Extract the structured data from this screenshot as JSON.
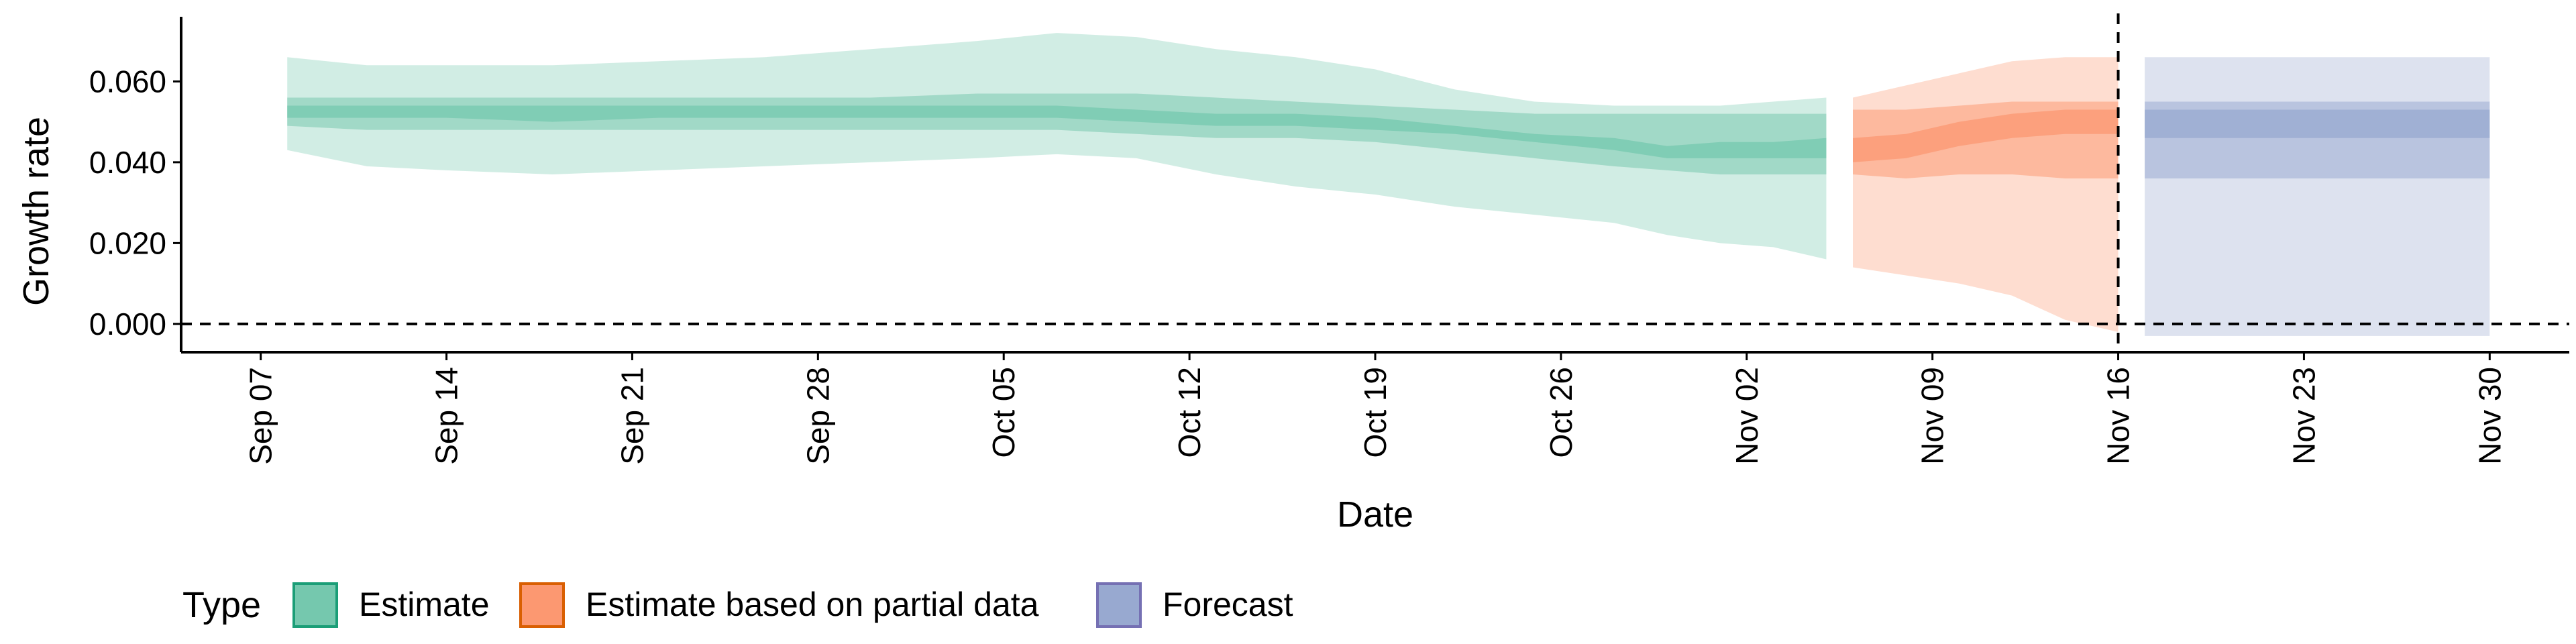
{
  "chart_data": {
    "type": "area",
    "xlabel": "Date",
    "ylabel": "Growth rate",
    "x_tick_labels": [
      "Sep 07",
      "Sep 14",
      "Sep 21",
      "Sep 28",
      "Oct 05",
      "Oct 12",
      "Oct 19",
      "Oct 26",
      "Nov 02",
      "Nov 09",
      "Nov 16",
      "Nov 23",
      "Nov 30"
    ],
    "x_tick_dates": [
      "2020-09-07",
      "2020-09-14",
      "2020-09-21",
      "2020-09-28",
      "2020-10-05",
      "2020-10-12",
      "2020-10-19",
      "2020-10-26",
      "2020-11-02",
      "2020-11-09",
      "2020-11-16",
      "2020-11-23",
      "2020-11-30"
    ],
    "y_tick_labels": [
      "0.000",
      "0.020",
      "0.040",
      "0.060"
    ],
    "y_ticks": [
      0,
      0.02,
      0.04,
      0.06
    ],
    "xlim": [
      "2020-09-04",
      "2020-12-03"
    ],
    "ylim": [
      -0.007,
      0.076
    ],
    "hline_y": 0,
    "vline_x": "2020-11-16",
    "legend_title": "Type",
    "legend_position": "bottom-left",
    "grid": false,
    "colors": {
      "Estimate": "#66c2a5",
      "Estimate based on partial data": "#fc8d62",
      "Forecast": "#8da0cb",
      "Estimate_border": "#1b9e77",
      "Estimate based on partial data_border": "#d95f02",
      "Forecast_border": "#7570b3"
    },
    "series": [
      {
        "name": "Estimate",
        "x": [
          "2020-09-08",
          "2020-09-11",
          "2020-09-14",
          "2020-09-18",
          "2020-09-22",
          "2020-09-26",
          "2020-09-30",
          "2020-10-04",
          "2020-10-07",
          "2020-10-10",
          "2020-10-13",
          "2020-10-16",
          "2020-10-19",
          "2020-10-22",
          "2020-10-25",
          "2020-10-28",
          "2020-10-30",
          "2020-11-01",
          "2020-11-03",
          "2020-11-05"
        ],
        "ci90_lower": [
          0.043,
          0.039,
          0.038,
          0.037,
          0.038,
          0.039,
          0.04,
          0.041,
          0.042,
          0.041,
          0.037,
          0.034,
          0.032,
          0.029,
          0.027,
          0.025,
          0.022,
          0.02,
          0.019,
          0.016
        ],
        "ci90_upper": [
          0.066,
          0.064,
          0.064,
          0.064,
          0.065,
          0.066,
          0.068,
          0.07,
          0.072,
          0.071,
          0.068,
          0.066,
          0.063,
          0.058,
          0.055,
          0.054,
          0.054,
          0.054,
          0.055,
          0.056
        ],
        "ci50_lower": [
          0.049,
          0.048,
          0.048,
          0.048,
          0.048,
          0.048,
          0.048,
          0.048,
          0.048,
          0.047,
          0.046,
          0.046,
          0.045,
          0.043,
          0.041,
          0.039,
          0.038,
          0.037,
          0.037,
          0.037
        ],
        "ci50_upper": [
          0.056,
          0.056,
          0.056,
          0.056,
          0.056,
          0.056,
          0.056,
          0.057,
          0.057,
          0.057,
          0.056,
          0.055,
          0.054,
          0.053,
          0.052,
          0.052,
          0.052,
          0.052,
          0.052,
          0.052
        ],
        "ci20_lower": [
          0.051,
          0.051,
          0.051,
          0.05,
          0.051,
          0.051,
          0.051,
          0.051,
          0.051,
          0.05,
          0.049,
          0.049,
          0.048,
          0.047,
          0.045,
          0.043,
          0.041,
          0.041,
          0.041,
          0.041
        ],
        "ci20_upper": [
          0.054,
          0.054,
          0.054,
          0.054,
          0.054,
          0.054,
          0.054,
          0.054,
          0.054,
          0.053,
          0.052,
          0.052,
          0.051,
          0.049,
          0.047,
          0.046,
          0.044,
          0.045,
          0.045,
          0.046
        ]
      },
      {
        "name": "Estimate based on partial data",
        "x": [
          "2020-11-06",
          "2020-11-08",
          "2020-11-10",
          "2020-11-12",
          "2020-11-14",
          "2020-11-16"
        ],
        "ci90_lower": [
          0.014,
          0.012,
          0.01,
          0.007,
          0.001,
          -0.002
        ],
        "ci90_upper": [
          0.056,
          0.059,
          0.062,
          0.065,
          0.066,
          0.066
        ],
        "ci50_lower": [
          0.037,
          0.036,
          0.037,
          0.037,
          0.036,
          0.036
        ],
        "ci50_upper": [
          0.053,
          0.053,
          0.054,
          0.055,
          0.055,
          0.055
        ],
        "ci20_lower": [
          0.04,
          0.041,
          0.044,
          0.046,
          0.047,
          0.047
        ],
        "ci20_upper": [
          0.046,
          0.047,
          0.05,
          0.052,
          0.053,
          0.053
        ]
      },
      {
        "name": "Forecast",
        "x": [
          "2020-11-17",
          "2020-11-30"
        ],
        "ci90_lower": [
          -0.003,
          -0.003
        ],
        "ci90_upper": [
          0.066,
          0.066
        ],
        "ci50_lower": [
          0.036,
          0.036
        ],
        "ci50_upper": [
          0.055,
          0.055
        ],
        "ci20_lower": [
          0.046,
          0.046
        ],
        "ci20_upper": [
          0.053,
          0.053
        ]
      }
    ]
  }
}
